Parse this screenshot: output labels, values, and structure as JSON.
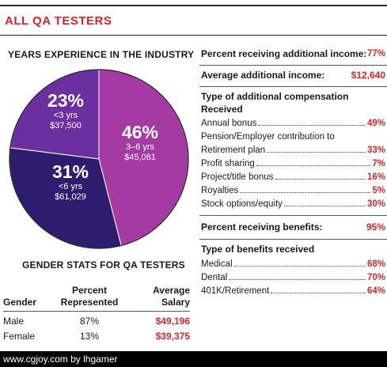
{
  "header": {
    "title": "ALL QA TESTERS"
  },
  "experience": {
    "title": "YEARS EXPERIENCE IN THE INDUSTRY",
    "slices": [
      {
        "pct": "23%",
        "range": "<3 yrs",
        "salary": "$37,500"
      },
      {
        "pct": "46%",
        "range": "3–6 yrs",
        "salary": "$45,081"
      },
      {
        "pct": "31%",
        "range": "<6 yrs",
        "salary": "$61,029"
      }
    ]
  },
  "chart_data": {
    "type": "pie",
    "title": "YEARS EXPERIENCE IN THE INDUSTRY",
    "categories": [
      "<3 yrs",
      "3–6 yrs",
      "<6 yrs"
    ],
    "values": [
      23,
      46,
      31
    ],
    "salaries": [
      "$37,500",
      "$45,081",
      "$61,029"
    ],
    "colors": [
      "#6b2fa0",
      "#a63aa3",
      "#2e1d6e"
    ]
  },
  "gender": {
    "title": "GENDER STATS FOR QA TESTERS",
    "headers": {
      "gender": "Gender",
      "percent": "Percent Represented",
      "salary": "Average Salary"
    },
    "rows": [
      {
        "gender": "Male",
        "percent": "87%",
        "salary": "$49,196"
      },
      {
        "gender": "Female",
        "percent": "13%",
        "salary": "$39,375"
      }
    ]
  },
  "additional_income": {
    "label": "Percent receiving additional income:",
    "value": "77%",
    "avg_label": "Average additional income:",
    "avg_value": "$12,640"
  },
  "compensation": {
    "title": "Type of additional compensation Received",
    "items": [
      {
        "label": "Annual bonus",
        "value": "49%"
      },
      {
        "label": "Pension/Employer contribution to",
        "value": ""
      },
      {
        "label": "Retirement plan",
        "value": "33%"
      },
      {
        "label": "Profit sharing",
        "value": "7%"
      },
      {
        "label": "Project/title bonus",
        "value": "16%"
      },
      {
        "label": "Royalties",
        "value": "5%"
      },
      {
        "label": "Stock options/equity",
        "value": "30%"
      }
    ]
  },
  "benefits": {
    "label": "Percent receiving benefits:",
    "value": "95%",
    "types_title": "Type of benefits received",
    "items": [
      {
        "label": "Medical",
        "value": "68%"
      },
      {
        "label": "Dental",
        "value": "70%"
      },
      {
        "label": "401K/Retirement",
        "value": "64%"
      }
    ]
  },
  "footer": {
    "text": "www.cgjoy.com by lhgamer"
  }
}
